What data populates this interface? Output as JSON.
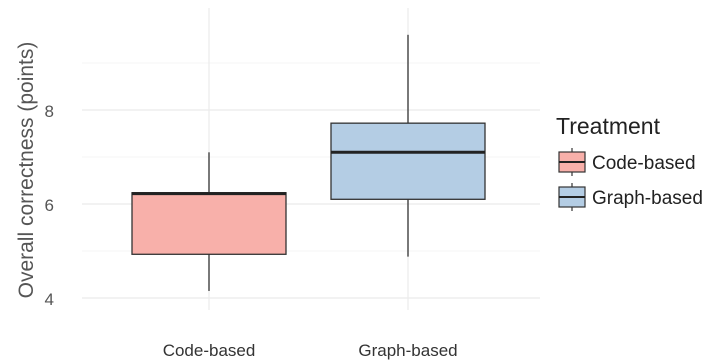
{
  "chart_data": {
    "type": "boxplot",
    "ylabel": "Overall correctness (points)",
    "ylim": [
      3.9,
      9.9
    ],
    "yticks": [
      4,
      6,
      8
    ],
    "grid": true,
    "legend": {
      "title": "Treatment",
      "position": "right",
      "entries": [
        "Code-based",
        "Graph-based"
      ]
    },
    "categories": [
      "Code-based",
      "Graph-based"
    ],
    "series": [
      {
        "name": "Code-based",
        "color": "#f8b0aa",
        "whisker_low": 4.15,
        "q1": 4.93,
        "median": 6.22,
        "q3": 6.24,
        "whisker_high": 7.1
      },
      {
        "name": "Graph-based",
        "color": "#b4cde4",
        "whisker_low": 4.88,
        "q1": 6.1,
        "median": 7.1,
        "q3": 7.72,
        "whisker_high": 9.6
      }
    ]
  }
}
